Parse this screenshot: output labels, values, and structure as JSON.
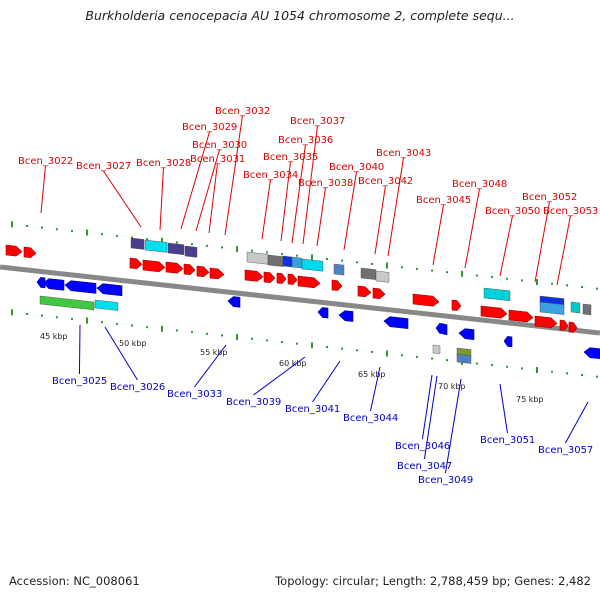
{
  "title": "Burkholderia cenocepacia AU 1054 chromosome 2, complete sequ...",
  "footer": {
    "accession": "Accession: NC_008061",
    "summary": "Topology: circular; Length: 2,788,459 bp; Genes: 2,482"
  },
  "colors": {
    "forward_gene": "#ff0000",
    "reverse_gene": "#0000ff",
    "forward_label": "#e00000",
    "reverse_label": "#0000cc",
    "backbone": "#888888",
    "frame_ticks": "#2a9a2a"
  },
  "scale_labels": [
    "45 kbp",
    "50 kbp",
    "55 kbp",
    "60 kbp",
    "65 kbp",
    "70 kbp",
    "75 kbp"
  ],
  "top_genes": [
    "Bcen_3022",
    "Bcen_3027",
    "Bcen_3028",
    "Bcen_3029",
    "Bcen_3030",
    "Bcen_3031",
    "Bcen_3032",
    "Bcen_3034",
    "Bcen_3035",
    "Bcen_3036",
    "Bcen_3037",
    "Bcen_3038",
    "Bcen_3040",
    "Bcen_3042",
    "Bcen_3043",
    "Bcen_3045",
    "Bcen_3048",
    "Bcen_3050",
    "Bcen_3052",
    "Bcen_3053"
  ],
  "bottom_genes": [
    "Bcen_3025",
    "Bcen_3026",
    "Bcen_3033",
    "Bcen_3039",
    "Bcen_3041",
    "Bcen_3044",
    "Bcen_3046",
    "Bcen_3047",
    "Bcen_3049",
    "Bcen_3051",
    "Bcen_3057"
  ]
}
